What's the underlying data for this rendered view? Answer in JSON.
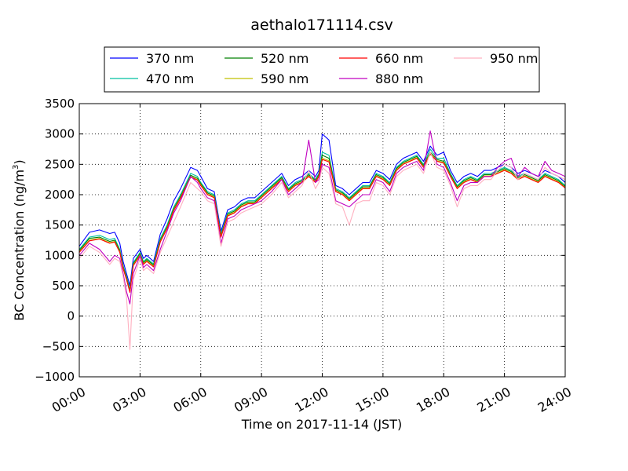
{
  "chart_data": {
    "type": "line",
    "title": "aethalo171114.csv",
    "xlabel": "Time on 2017-11-14 (JST)",
    "ylabel": "BC Concentration (ng/m",
    "ylabel_superscript": "3",
    "ylabel_suffix": ")",
    "xlim": [
      "2017-11-14 00:00",
      "2017-11-15 00:00"
    ],
    "ylim": [
      -1000,
      3500
    ],
    "xticks": [
      "00:00",
      "03:00",
      "06:00",
      "09:00",
      "12:00",
      "15:00",
      "18:00",
      "21:00",
      "24:00"
    ],
    "yticks": [
      -1000,
      -500,
      0,
      500,
      1000,
      1500,
      2000,
      2500,
      3000,
      3500
    ],
    "ytick_labels": [
      "−1000",
      "−500",
      "0",
      "500",
      "1000",
      "1500",
      "2000",
      "2500",
      "3000",
      "3500"
    ],
    "grid": true,
    "legend_position": "top",
    "x_times": [
      "00:00",
      "00:30",
      "01:00",
      "01:30",
      "01:45",
      "02:00",
      "02:10",
      "02:20",
      "02:30",
      "02:40",
      "03:00",
      "03:10",
      "03:20",
      "03:40",
      "04:00",
      "04:20",
      "04:40",
      "05:00",
      "05:30",
      "05:50",
      "06:00",
      "06:20",
      "06:40",
      "07:00",
      "07:20",
      "07:40",
      "08:00",
      "08:20",
      "08:40",
      "09:00",
      "09:30",
      "10:00",
      "10:20",
      "10:40",
      "11:00",
      "11:20",
      "11:40",
      "11:50",
      "12:00",
      "12:20",
      "12:40",
      "13:00",
      "13:20",
      "13:40",
      "14:00",
      "14:20",
      "14:40",
      "15:00",
      "15:20",
      "15:40",
      "16:00",
      "16:20",
      "16:40",
      "17:00",
      "17:20",
      "17:40",
      "18:00",
      "18:20",
      "18:40",
      "19:00",
      "19:20",
      "19:40",
      "20:00",
      "20:20",
      "20:40",
      "21:00",
      "21:20",
      "21:40",
      "22:00",
      "22:20",
      "22:40",
      "23:00",
      "23:20",
      "23:40",
      "24:00"
    ],
    "series": [
      {
        "name": "370 nm",
        "color": "#0000ff",
        "values": [
          1150,
          1380,
          1420,
          1360,
          1380,
          1200,
          900,
          700,
          500,
          950,
          1100,
          950,
          1000,
          900,
          1350,
          1600,
          1900,
          2100,
          2450,
          2400,
          2300,
          2100,
          2050,
          1400,
          1750,
          1800,
          1900,
          1950,
          1950,
          2050,
          2200,
          2350,
          2150,
          2250,
          2300,
          2400,
          2300,
          2400,
          3000,
          2900,
          2150,
          2100,
          2000,
          2100,
          2200,
          2200,
          2400,
          2350,
          2250,
          2500,
          2600,
          2650,
          2700,
          2550,
          2800,
          2650,
          2700,
          2400,
          2200,
          2300,
          2350,
          2300,
          2400,
          2400,
          2450,
          2500,
          2450,
          2350,
          2400,
          2350,
          2300,
          2400,
          2350,
          2300,
          2200
        ]
      },
      {
        "name": "470 nm",
        "color": "#00c0a0",
        "values": [
          1100,
          1300,
          1330,
          1260,
          1280,
          1100,
          830,
          650,
          430,
          880,
          1050,
          900,
          950,
          860,
          1280,
          1500,
          1800,
          2000,
          2350,
          2300,
          2200,
          2050,
          2000,
          1350,
          1700,
          1750,
          1850,
          1900,
          1900,
          2000,
          2150,
          2300,
          2100,
          2200,
          2250,
          2350,
          2250,
          2350,
          2700,
          2650,
          2100,
          2050,
          1950,
          2050,
          2150,
          2150,
          2350,
          2300,
          2200,
          2450,
          2550,
          2600,
          2650,
          2500,
          2750,
          2600,
          2600,
          2350,
          2150,
          2250,
          2300,
          2250,
          2350,
          2350,
          2400,
          2450,
          2400,
          2300,
          2350,
          2300,
          2250,
          2350,
          2300,
          2250,
          2150
        ]
      },
      {
        "name": "520 nm",
        "color": "#008000",
        "values": [
          1080,
          1280,
          1300,
          1230,
          1250,
          1080,
          810,
          630,
          420,
          860,
          1030,
          880,
          930,
          840,
          1250,
          1470,
          1770,
          1970,
          2320,
          2270,
          2180,
          2030,
          1980,
          1330,
          1680,
          1730,
          1830,
          1880,
          1880,
          1980,
          2130,
          2280,
          2080,
          2180,
          2230,
          2330,
          2230,
          2330,
          2650,
          2600,
          2080,
          2030,
          1930,
          2030,
          2130,
          2130,
          2330,
          2280,
          2180,
          2430,
          2530,
          2580,
          2630,
          2480,
          2700,
          2580,
          2550,
          2330,
          2130,
          2230,
          2280,
          2230,
          2330,
          2330,
          2380,
          2430,
          2380,
          2280,
          2330,
          2280,
          2230,
          2330,
          2280,
          2230,
          2130
        ]
      },
      {
        "name": "590 nm",
        "color": "#c0c000",
        "values": [
          1060,
          1250,
          1280,
          1210,
          1230,
          1060,
          790,
          610,
          400,
          840,
          1010,
          860,
          910,
          820,
          1230,
          1450,
          1750,
          1950,
          2300,
          2250,
          2160,
          2010,
          1960,
          1310,
          1660,
          1710,
          1810,
          1860,
          1860,
          1960,
          2110,
          2260,
          2060,
          2160,
          2210,
          2310,
          2210,
          2310,
          2600,
          2560,
          2060,
          2010,
          1910,
          2010,
          2110,
          2110,
          2310,
          2260,
          2160,
          2410,
          2510,
          2560,
          2610,
          2460,
          2680,
          2560,
          2530,
          2310,
          2110,
          2210,
          2260,
          2210,
          2310,
          2310,
          2360,
          2410,
          2360,
          2260,
          2310,
          2260,
          2210,
          2310,
          2260,
          2210,
          2120
        ]
      },
      {
        "name": "660 nm",
        "color": "#ff0000",
        "values": [
          1050,
          1240,
          1270,
          1200,
          1220,
          1050,
          780,
          600,
          390,
          830,
          1000,
          850,
          900,
          810,
          1220,
          1440,
          1740,
          1940,
          2290,
          2240,
          2150,
          2000,
          1950,
          1300,
          1650,
          1700,
          1800,
          1850,
          1850,
          1950,
          2100,
          2250,
          2050,
          2150,
          2200,
          2300,
          2200,
          2300,
          2580,
          2540,
          2050,
          2000,
          1900,
          2000,
          2100,
          2100,
          2300,
          2250,
          2150,
          2400,
          2500,
          2550,
          2600,
          2450,
          2670,
          2550,
          2520,
          2300,
          2100,
          2200,
          2250,
          2200,
          2300,
          2300,
          2350,
          2400,
          2350,
          2250,
          2300,
          2250,
          2200,
          2300,
          2250,
          2200,
          2110
        ]
      },
      {
        "name": "880 nm",
        "color": "#c000c0",
        "values": [
          1000,
          1200,
          1100,
          900,
          1000,
          950,
          700,
          400,
          200,
          700,
          1000,
          800,
          850,
          750,
          1100,
          1400,
          1700,
          1900,
          2300,
          2200,
          2100,
          1950,
          1900,
          1200,
          1600,
          1650,
          1750,
          1800,
          1850,
          1900,
          2050,
          2250,
          2000,
          2100,
          2200,
          2900,
          2200,
          2250,
          2500,
          2450,
          1900,
          1850,
          1800,
          1900,
          2000,
          2000,
          2250,
          2200,
          2050,
          2350,
          2450,
          2500,
          2550,
          2400,
          3050,
          2500,
          2450,
          2200,
          1900,
          2150,
          2200,
          2200,
          2300,
          2300,
          2450,
          2550,
          2600,
          2300,
          2450,
          2350,
          2300,
          2550,
          2400,
          2350,
          2300
        ]
      },
      {
        "name": "950 nm",
        "color": "#ffb0c0",
        "values": [
          950,
          1150,
          1050,
          850,
          950,
          900,
          650,
          300,
          -550,
          600,
          950,
          750,
          800,
          700,
          1050,
          1300,
          1550,
          1800,
          2200,
          2100,
          2050,
          1900,
          1850,
          1150,
          1550,
          1600,
          1700,
          1750,
          1800,
          1850,
          2000,
          2200,
          1950,
          2050,
          2150,
          2400,
          2100,
          2200,
          2450,
          2350,
          1850,
          1800,
          1500,
          1850,
          1900,
          1900,
          2200,
          2150,
          2000,
          2300,
          2400,
          2450,
          2500,
          2350,
          2700,
          2450,
          2400,
          2150,
          1800,
          2100,
          2150,
          2150,
          2250,
          2250,
          2400,
          2500,
          2450,
          2250,
          2350,
          2300,
          2250,
          2450,
          2350,
          2300,
          2250
        ]
      }
    ]
  }
}
